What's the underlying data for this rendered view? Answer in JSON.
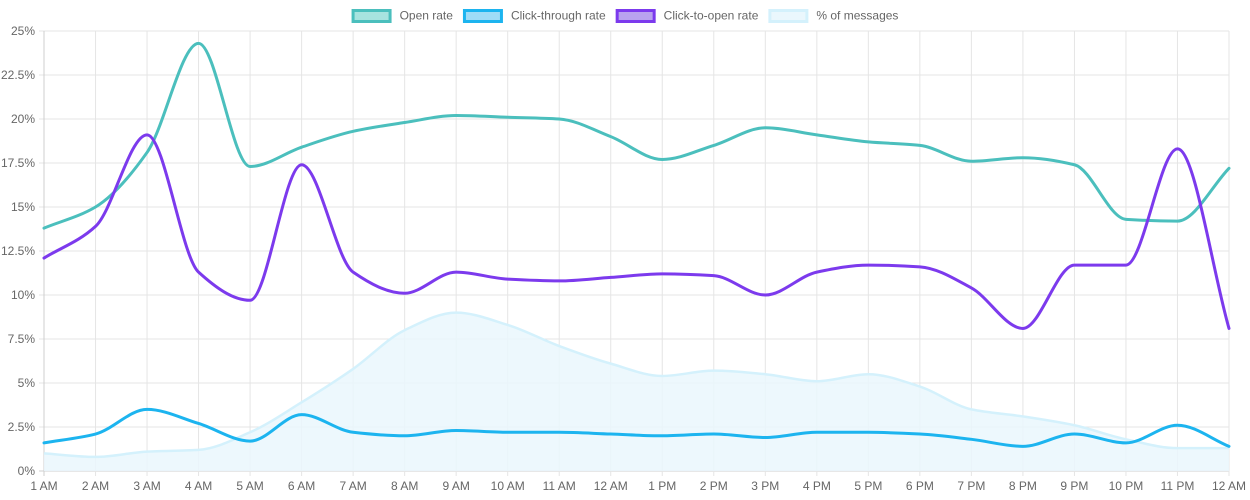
{
  "chart_data": {
    "type": "line",
    "title": "",
    "xlabel": "",
    "ylabel": "",
    "categories": [
      "1 AM",
      "2 AM",
      "3 AM",
      "4 AM",
      "5 AM",
      "6 AM",
      "7 AM",
      "8 AM",
      "9 AM",
      "10 AM",
      "11 AM",
      "12 AM",
      "1 PM",
      "2 PM",
      "3 PM",
      "4 PM",
      "5 PM",
      "6 PM",
      "7 PM",
      "8 PM",
      "9 PM",
      "10 PM",
      "11 PM",
      "12 AM"
    ],
    "ylim": [
      0,
      25
    ],
    "yticks": [
      0,
      2.5,
      5,
      7.5,
      10,
      12.5,
      15,
      17.5,
      20,
      22.5,
      25
    ],
    "ytick_labels": [
      "0%",
      "2.5%",
      "5%",
      "7.5%",
      "10%",
      "12.5%",
      "15%",
      "17.5%",
      "20%",
      "22.5%",
      "25%"
    ],
    "grid": true,
    "legend_position": "top-center",
    "series": [
      {
        "name": "Open rate",
        "kind": "line",
        "color": "#4bbfbd",
        "fill_color": "#a7e3df",
        "values": [
          13.8,
          15.0,
          18.1,
          24.3,
          17.3,
          18.4,
          19.3,
          19.8,
          20.2,
          20.1,
          20.0,
          19.0,
          17.7,
          18.5,
          19.5,
          19.1,
          18.7,
          18.5,
          17.6,
          17.8,
          17.4,
          14.3,
          14.2,
          17.2
        ]
      },
      {
        "name": "Click-through rate",
        "kind": "line",
        "color": "#1cb4ef",
        "fill_color": "#9fdcf7",
        "values": [
          1.6,
          2.1,
          3.5,
          2.7,
          1.7,
          3.2,
          2.2,
          2.0,
          2.3,
          2.2,
          2.2,
          2.1,
          2.0,
          2.1,
          1.9,
          2.2,
          2.2,
          2.1,
          1.8,
          1.4,
          2.1,
          1.6,
          2.6,
          1.4
        ]
      },
      {
        "name": "Click-to-open rate",
        "kind": "line",
        "color": "#7c3aed",
        "fill_color": "#b9a2ef",
        "values": [
          12.1,
          13.9,
          19.1,
          11.3,
          9.7,
          17.4,
          11.3,
          10.1,
          11.3,
          10.9,
          10.8,
          11.0,
          11.2,
          11.1,
          10.0,
          11.3,
          11.7,
          11.6,
          10.4,
          8.1,
          11.7,
          11.7,
          18.3,
          8.1
        ]
      },
      {
        "name": "% of messages",
        "kind": "area",
        "color": "#d4f1fc",
        "fill_color": "#eaf7fd",
        "values": [
          1.0,
          0.8,
          1.1,
          1.2,
          2.2,
          3.9,
          5.8,
          8.0,
          9.0,
          8.3,
          7.1,
          6.1,
          5.4,
          5.7,
          5.5,
          5.1,
          5.5,
          4.8,
          3.5,
          3.1,
          2.6,
          1.8,
          1.3,
          1.3
        ]
      }
    ]
  }
}
